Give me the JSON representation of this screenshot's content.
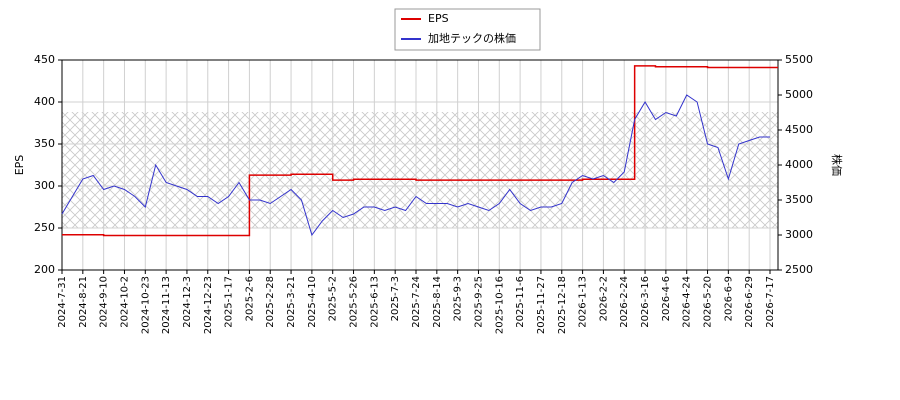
{
  "chart_data": {
    "type": "line",
    "y_label": "EPS",
    "y2_label": "株価",
    "categories": [
      "2024-7-31",
      null,
      "2024-8-21",
      null,
      "2024-9-10",
      null,
      "2024-10-2",
      null,
      "2024-10-23",
      null,
      "2024-11-13",
      null,
      "2024-12-3",
      null,
      "2024-12-23",
      null,
      "2025-1-17",
      null,
      "2025-2-6",
      null,
      "2025-2-28",
      null,
      "2025-3-21",
      null,
      "2025-4-10",
      null,
      "2025-5-2",
      null,
      "2025-5-26",
      null,
      "2025-6-13",
      null,
      "2025-7-3",
      null,
      "2025-7-24",
      null,
      "2025-8-14",
      null,
      "2025-9-3",
      null,
      "2025-9-25",
      null,
      "2025-10-16",
      null,
      "2025-11-6",
      null,
      "2025-11-27",
      null,
      "2025-12-18",
      null,
      "2026-1-13",
      null,
      "2026-2-2",
      null,
      "2026-2-24",
      null,
      "2026-3-16",
      null,
      "2026-4-6",
      null,
      "2026-4-24",
      null,
      "2026-5-20",
      null,
      "2026-6-9",
      null,
      "2026-6-29",
      null,
      "2026-7-17"
    ],
    "series": [
      {
        "name": "EPS",
        "color": "#dd0000",
        "axis": "y",
        "values": [
          242,
          242,
          242,
          242,
          241,
          241,
          241,
          241,
          241,
          241,
          241,
          241,
          241,
          241,
          241,
          241,
          241,
          241,
          313,
          313,
          313,
          313,
          314,
          314,
          314,
          314,
          307,
          307,
          308,
          308,
          308,
          308,
          308,
          308,
          307,
          307,
          307,
          307,
          307,
          307,
          307,
          307,
          307,
          307,
          307,
          307,
          307,
          307,
          307,
          307,
          308,
          308,
          308,
          308,
          308,
          443,
          443,
          442,
          442,
          442,
          442,
          442,
          441,
          441,
          441,
          441,
          441,
          441,
          441
        ]
      },
      {
        "name": "加地テックの株価",
        "color": "#3333cc",
        "axis": "y2",
        "values": [
          3300,
          3550,
          3800,
          3850,
          3650,
          3700,
          3650,
          3550,
          3400,
          4000,
          3750,
          3700,
          3650,
          3550,
          3550,
          3450,
          3550,
          3750,
          3500,
          3500,
          3450,
          3550,
          3650,
          3500,
          3000,
          3200,
          3350,
          3250,
          3300,
          3400,
          3400,
          3350,
          3400,
          3350,
          3550,
          3450,
          3450,
          3450,
          3400,
          3450,
          3400,
          3350,
          3450,
          3650,
          3450,
          3350,
          3400,
          3400,
          3450,
          3750,
          3850,
          3800,
          3850,
          3750,
          3900,
          4650,
          4900,
          4650,
          4750,
          4700,
          5000,
          4900,
          4300,
          4250,
          3800,
          4300,
          4350,
          4400,
          4400
        ]
      }
    ],
    "ylim": [
      200,
      450
    ],
    "yticks": [
      200,
      250,
      300,
      350,
      400,
      450
    ],
    "y2lim": [
      2500,
      5500
    ],
    "y2ticks": [
      2500,
      3000,
      3500,
      4000,
      4500,
      5000,
      5500
    ],
    "grid": true
  }
}
